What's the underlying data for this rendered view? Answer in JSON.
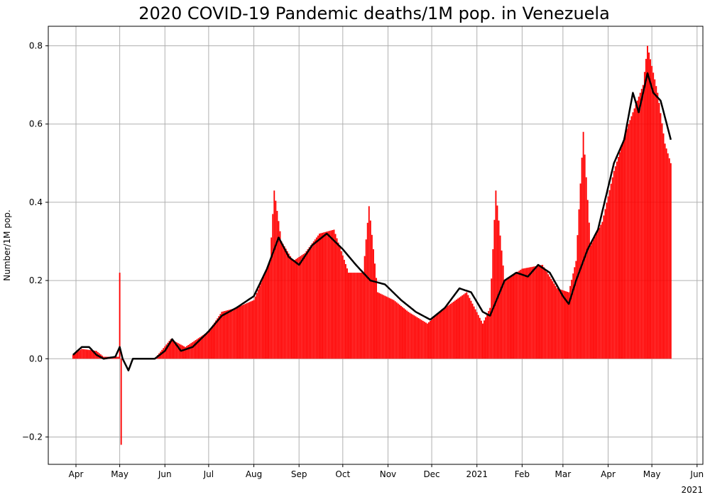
{
  "chart_data": {
    "type": "bar",
    "title": "2020 COVID-19 Pandemic deaths/1M pop. in Venezuela",
    "xlabel": "",
    "ylabel": "Number/1M pop.",
    "ylim": [
      -0.27,
      0.85
    ],
    "xlim": [
      "2020-03-13",
      "2021-06-05"
    ],
    "yticks": [
      -0.2,
      0.0,
      0.2,
      0.4,
      0.6,
      0.8
    ],
    "ytick_labels": [
      "−0.2",
      "0.0",
      "0.2",
      "0.4",
      "0.6",
      "0.8"
    ],
    "xticks": [
      "2020-04-01",
      "2020-05-01",
      "2020-06-01",
      "2020-07-01",
      "2020-08-01",
      "2020-09-01",
      "2020-10-01",
      "2020-11-01",
      "2020-12-01",
      "2021-01-01",
      "2021-02-01",
      "2021-03-01",
      "2021-04-01",
      "2021-05-01",
      "2021-06-01"
    ],
    "xtick_labels": [
      "Apr",
      "May",
      "Jun",
      "Jul",
      "Aug",
      "Sep",
      "Oct",
      "Nov",
      "Dec",
      "2021",
      "Feb",
      "Mar",
      "Apr",
      "May",
      "Jun"
    ],
    "offset_label": "2021",
    "grid": true,
    "colors": {
      "bars": "#ff0000",
      "line": "#000000",
      "grid": "#b0b0b0"
    },
    "series": [
      {
        "type": "bar",
        "anchors": [
          [
            "2020-03-30",
            0.01
          ],
          [
            "2020-04-05",
            0.025
          ],
          [
            "2020-04-15",
            0.02
          ],
          [
            "2020-04-20",
            0.005
          ],
          [
            "2020-04-30",
            0.005
          ],
          [
            "2020-05-01",
            0.22
          ],
          [
            "2020-05-02",
            -0.22
          ],
          [
            "2020-05-03",
            0.0
          ],
          [
            "2020-05-25",
            0.0
          ],
          [
            "2020-06-05",
            0.05
          ],
          [
            "2020-06-15",
            0.03
          ],
          [
            "2020-07-01",
            0.07
          ],
          [
            "2020-07-10",
            0.12
          ],
          [
            "2020-07-20",
            0.13
          ],
          [
            "2020-08-01",
            0.15
          ],
          [
            "2020-08-12",
            0.25
          ],
          [
            "2020-08-15",
            0.43
          ],
          [
            "2020-08-20",
            0.3
          ],
          [
            "2020-08-28",
            0.25
          ],
          [
            "2020-09-05",
            0.27
          ],
          [
            "2020-09-15",
            0.32
          ],
          [
            "2020-09-25",
            0.33
          ],
          [
            "2020-10-05",
            0.22
          ],
          [
            "2020-10-15",
            0.22
          ],
          [
            "2020-10-19",
            0.39
          ],
          [
            "2020-10-25",
            0.17
          ],
          [
            "2020-11-05",
            0.15
          ],
          [
            "2020-11-15",
            0.12
          ],
          [
            "2020-11-28",
            0.09
          ],
          [
            "2020-12-10",
            0.13
          ],
          [
            "2020-12-25",
            0.17
          ],
          [
            "2021-01-05",
            0.09
          ],
          [
            "2021-01-10",
            0.13
          ],
          [
            "2021-01-14",
            0.43
          ],
          [
            "2021-01-20",
            0.2
          ],
          [
            "2021-02-01",
            0.23
          ],
          [
            "2021-02-15",
            0.24
          ],
          [
            "2021-02-25",
            0.18
          ],
          [
            "2021-03-05",
            0.17
          ],
          [
            "2021-03-10",
            0.25
          ],
          [
            "2021-03-15",
            0.58
          ],
          [
            "2021-03-20",
            0.29
          ],
          [
            "2021-03-28",
            0.35
          ],
          [
            "2021-04-05",
            0.48
          ],
          [
            "2021-04-15",
            0.6
          ],
          [
            "2021-04-25",
            0.7
          ],
          [
            "2021-04-28",
            0.8
          ],
          [
            "2021-05-05",
            0.68
          ],
          [
            "2021-05-10",
            0.55
          ],
          [
            "2021-05-14",
            0.5
          ]
        ]
      },
      {
        "type": "line",
        "anchors": [
          [
            "2020-03-30",
            0.01
          ],
          [
            "2020-04-05",
            0.03
          ],
          [
            "2020-04-10",
            0.03
          ],
          [
            "2020-04-15",
            0.01
          ],
          [
            "2020-04-20",
            0.0
          ],
          [
            "2020-04-28",
            0.005
          ],
          [
            "2020-05-01",
            0.03
          ],
          [
            "2020-05-03",
            0.0
          ],
          [
            "2020-05-07",
            -0.03
          ],
          [
            "2020-05-10",
            0.0
          ],
          [
            "2020-05-25",
            0.0
          ],
          [
            "2020-06-01",
            0.02
          ],
          [
            "2020-06-06",
            0.05
          ],
          [
            "2020-06-12",
            0.02
          ],
          [
            "2020-06-20",
            0.03
          ],
          [
            "2020-07-01",
            0.07
          ],
          [
            "2020-07-10",
            0.11
          ],
          [
            "2020-07-20",
            0.13
          ],
          [
            "2020-08-01",
            0.16
          ],
          [
            "2020-08-10",
            0.23
          ],
          [
            "2020-08-18",
            0.31
          ],
          [
            "2020-08-25",
            0.26
          ],
          [
            "2020-09-01",
            0.24
          ],
          [
            "2020-09-10",
            0.29
          ],
          [
            "2020-09-20",
            0.32
          ],
          [
            "2020-10-01",
            0.28
          ],
          [
            "2020-10-10",
            0.24
          ],
          [
            "2020-10-20",
            0.2
          ],
          [
            "2020-10-30",
            0.19
          ],
          [
            "2020-11-10",
            0.15
          ],
          [
            "2020-11-20",
            0.12
          ],
          [
            "2020-11-30",
            0.1
          ],
          [
            "2020-12-10",
            0.13
          ],
          [
            "2020-12-20",
            0.18
          ],
          [
            "2020-12-28",
            0.17
          ],
          [
            "2021-01-05",
            0.12
          ],
          [
            "2021-01-10",
            0.11
          ],
          [
            "2021-01-20",
            0.2
          ],
          [
            "2021-01-28",
            0.22
          ],
          [
            "2021-02-05",
            0.21
          ],
          [
            "2021-02-12",
            0.24
          ],
          [
            "2021-02-20",
            0.22
          ],
          [
            "2021-03-01",
            0.16
          ],
          [
            "2021-03-05",
            0.14
          ],
          [
            "2021-03-10",
            0.2
          ],
          [
            "2021-03-18",
            0.28
          ],
          [
            "2021-03-25",
            0.33
          ],
          [
            "2021-04-05",
            0.5
          ],
          [
            "2021-04-12",
            0.56
          ],
          [
            "2021-04-18",
            0.68
          ],
          [
            "2021-04-22",
            0.63
          ],
          [
            "2021-04-28",
            0.73
          ],
          [
            "2021-05-02",
            0.68
          ],
          [
            "2021-05-07",
            0.66
          ],
          [
            "2021-05-14",
            0.56
          ]
        ]
      }
    ]
  }
}
